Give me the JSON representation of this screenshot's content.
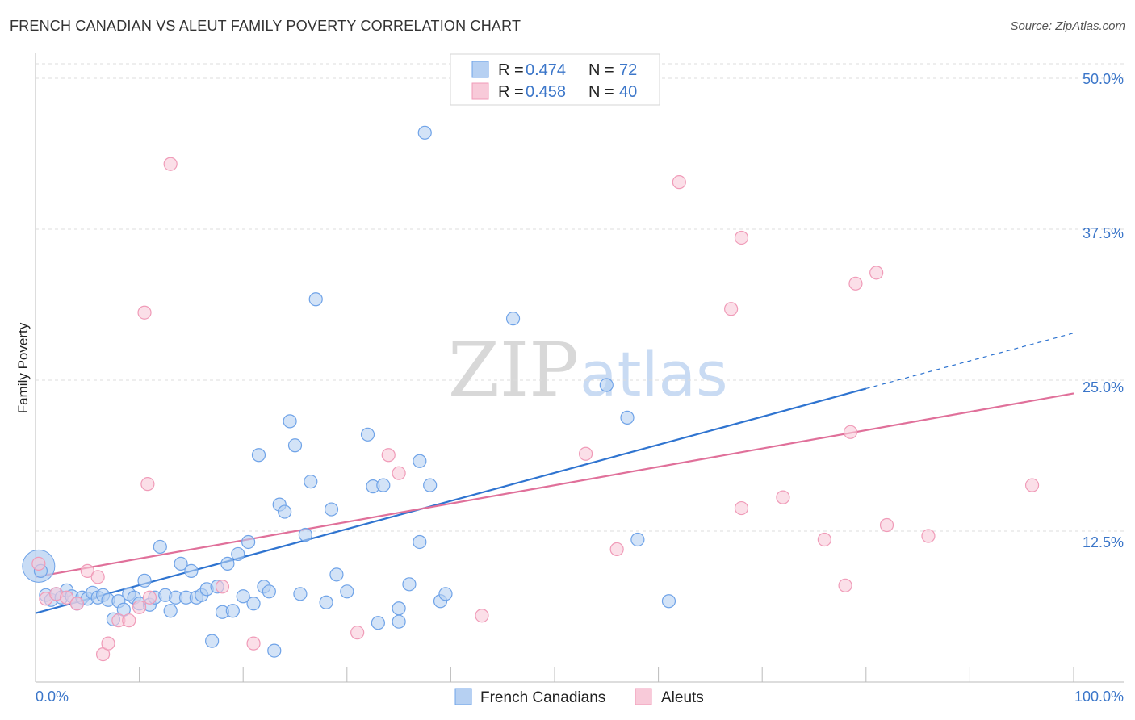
{
  "title": "FRENCH CANADIAN VS ALEUT FAMILY POVERTY CORRELATION CHART",
  "source": "Source: ZipAtlas.com",
  "watermark": {
    "zip": "ZIP",
    "atlas": "atlas"
  },
  "chart_data": {
    "type": "scatter",
    "ylabel": "Family Poverty",
    "xlabel": "",
    "xlim": [
      0,
      100
    ],
    "ylim": [
      0,
      50
    ],
    "x_tick_labels": [
      "0.0%",
      "100.0%"
    ],
    "y_ticks": [
      12.5,
      25.0,
      37.5,
      50.0
    ],
    "y_tick_labels": [
      "12.5%",
      "25.0%",
      "37.5%",
      "50.0%"
    ],
    "grid": true,
    "legend_top": [
      {
        "r_label": "R =",
        "r_value": "0.474",
        "n_label": "N =",
        "n_value": "72"
      },
      {
        "r_label": "R =",
        "r_value": "0.458",
        "n_label": "N =",
        "n_value": "40"
      }
    ],
    "series": [
      {
        "name": "French Canadians",
        "color": "#6fa3e8",
        "fill": "#b6d0f2",
        "line_color": "#2f74d0",
        "trend": {
          "x0": 0,
          "y0": 5.7,
          "x1": 80,
          "y1": 24.3,
          "dash_to_x": 100,
          "dash_to_y": 28.9
        },
        "points": [
          [
            0.5,
            9.2
          ],
          [
            1,
            7.2
          ],
          [
            1.5,
            6.8
          ],
          [
            2,
            7.3
          ],
          [
            2.5,
            7
          ],
          [
            3,
            7.6
          ],
          [
            3.5,
            7.1
          ],
          [
            4,
            6.5
          ],
          [
            4.5,
            7
          ],
          [
            5,
            6.9
          ],
          [
            5.5,
            7.4
          ],
          [
            6,
            7
          ],
          [
            6.5,
            7.2
          ],
          [
            7,
            6.8
          ],
          [
            7.5,
            5.2
          ],
          [
            8,
            6.7
          ],
          [
            8.5,
            6
          ],
          [
            9,
            7.3
          ],
          [
            9.5,
            7
          ],
          [
            10,
            6.5
          ],
          [
            10.5,
            8.4
          ],
          [
            11,
            6.4
          ],
          [
            11.5,
            7
          ],
          [
            12,
            11.2
          ],
          [
            12.5,
            7.2
          ],
          [
            13,
            5.9
          ],
          [
            13.5,
            7
          ],
          [
            14,
            9.8
          ],
          [
            14.5,
            7
          ],
          [
            15,
            9.2
          ],
          [
            15.5,
            7
          ],
          [
            16,
            7.2
          ],
          [
            16.5,
            7.7
          ],
          [
            17,
            3.4
          ],
          [
            17.5,
            7.9
          ],
          [
            18,
            5.8
          ],
          [
            18.5,
            9.8
          ],
          [
            19,
            5.9
          ],
          [
            19.5,
            10.6
          ],
          [
            20,
            7.1
          ],
          [
            20.5,
            11.6
          ],
          [
            21,
            6.5
          ],
          [
            21.5,
            18.8
          ],
          [
            22,
            7.9
          ],
          [
            22.5,
            7.5
          ],
          [
            23,
            2.6
          ],
          [
            23.5,
            14.7
          ],
          [
            24,
            14.1
          ],
          [
            24.5,
            21.6
          ],
          [
            25,
            19.6
          ],
          [
            25.5,
            7.3
          ],
          [
            26,
            12.2
          ],
          [
            26.5,
            16.6
          ],
          [
            27,
            31.7
          ],
          [
            28,
            6.6
          ],
          [
            28.5,
            14.3
          ],
          [
            29,
            8.9
          ],
          [
            30,
            7.5
          ],
          [
            32,
            20.5
          ],
          [
            32.5,
            16.2
          ],
          [
            33,
            4.9
          ],
          [
            33.5,
            16.3
          ],
          [
            35,
            5.0
          ],
          [
            35,
            6.1
          ],
          [
            36,
            8.1
          ],
          [
            37,
            11.6
          ],
          [
            37,
            18.3
          ],
          [
            37.5,
            45.5
          ],
          [
            38,
            16.3
          ],
          [
            39,
            6.7
          ],
          [
            39.5,
            7.3
          ],
          [
            46,
            30.1
          ],
          [
            55,
            24.6
          ],
          [
            57,
            21.9
          ],
          [
            58,
            11.8
          ],
          [
            61,
            6.7
          ]
        ]
      },
      {
        "name": "Aleuts",
        "color": "#f09bb8",
        "fill": "#f8cad9",
        "line_color": "#e0709a",
        "trend": {
          "x0": 0,
          "y0": 8.7,
          "x1": 100,
          "y1": 23.9
        },
        "points": [
          [
            0.3,
            9.8
          ],
          [
            1,
            6.9
          ],
          [
            2,
            7.3
          ],
          [
            3,
            7.0
          ],
          [
            4,
            6.5
          ],
          [
            5,
            9.2
          ],
          [
            6,
            8.7
          ],
          [
            6.5,
            2.3
          ],
          [
            7,
            3.2
          ],
          [
            8,
            5.1
          ],
          [
            9,
            5.1
          ],
          [
            10,
            6.2
          ],
          [
            10.5,
            30.6
          ],
          [
            10.8,
            16.4
          ],
          [
            11,
            7.0
          ],
          [
            13,
            42.9
          ],
          [
            18,
            7.9
          ],
          [
            21,
            3.2
          ],
          [
            31,
            4.1
          ],
          [
            34,
            18.8
          ],
          [
            35,
            17.3
          ],
          [
            43,
            5.5
          ],
          [
            53,
            18.9
          ],
          [
            56,
            11.0
          ],
          [
            62,
            41.4
          ],
          [
            67,
            30.9
          ],
          [
            68,
            36.8
          ],
          [
            68,
            14.4
          ],
          [
            72,
            15.3
          ],
          [
            76,
            11.8
          ],
          [
            78,
            8.0
          ],
          [
            78.5,
            20.7
          ],
          [
            79,
            33.0
          ],
          [
            81,
            33.9
          ],
          [
            82,
            13.0
          ],
          [
            86,
            12.1
          ],
          [
            96,
            16.3
          ]
        ]
      }
    ]
  }
}
